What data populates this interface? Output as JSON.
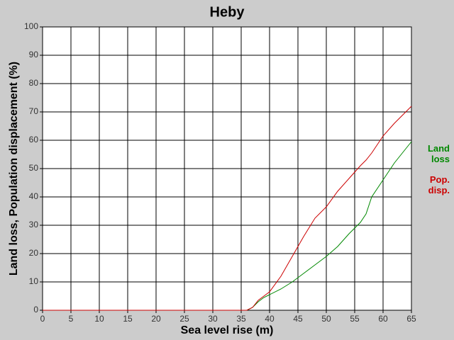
{
  "chart_data": {
    "type": "line",
    "title": "Heby",
    "x_label": "Sea level rise (m)",
    "y_label": "Land loss, Population displacement (%)",
    "x": [
      0,
      35,
      36,
      37,
      38,
      39,
      40,
      42,
      44,
      46,
      48,
      50,
      52,
      54,
      56,
      57,
      58,
      60,
      62,
      64,
      65
    ],
    "series": [
      {
        "name": "Land loss",
        "color": "#008800",
        "values": [
          0,
          0,
          0,
          1,
          3,
          4.5,
          5.5,
          7.5,
          10,
          13,
          16,
          19,
          22.5,
          27,
          31,
          34,
          40,
          46,
          52,
          57,
          59.5
        ]
      },
      {
        "name": "Pop. disp.",
        "color": "#cc0000",
        "values": [
          0,
          0,
          0,
          1,
          3.5,
          5,
          6.5,
          12,
          19,
          26,
          32.5,
          36.5,
          42,
          46.5,
          51,
          53,
          55.5,
          61.5,
          66,
          70,
          72
        ]
      }
    ],
    "xlim": [
      0,
      65
    ],
    "xticks": [
      0,
      5,
      10,
      15,
      20,
      25,
      30,
      35,
      40,
      45,
      50,
      55,
      60,
      65
    ],
    "ylim": [
      0,
      100
    ],
    "yticks": [
      0,
      10,
      20,
      30,
      40,
      50,
      60,
      70,
      80,
      90,
      100
    ],
    "grid": true
  }
}
